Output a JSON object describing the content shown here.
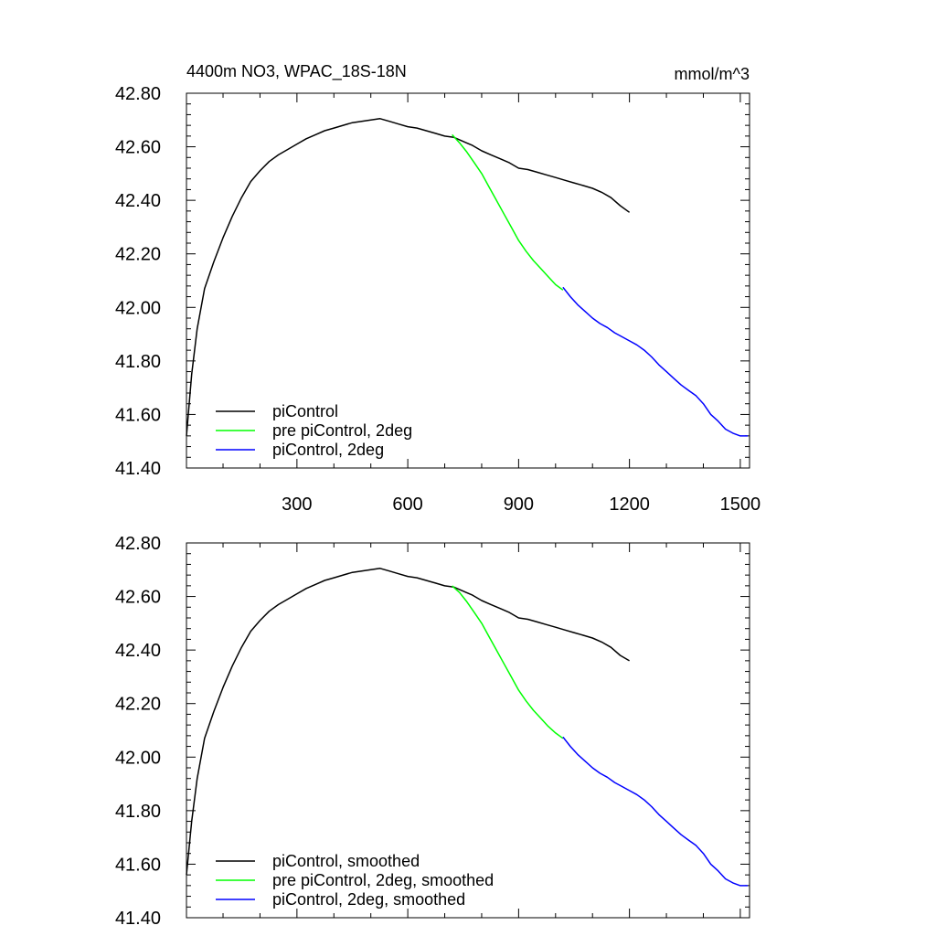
{
  "chart_data": [
    {
      "type": "line",
      "title": "4400m NO3, WPAC_18S-18N",
      "units": "mmol/m^3",
      "xlim": [
        1,
        1525
      ],
      "ylim": [
        41.4,
        42.8
      ],
      "x_ticks": [
        300,
        600,
        900,
        1200,
        1500
      ],
      "x_tick_labels": [
        "300",
        "600",
        "900",
        "1200",
        "1500"
      ],
      "y_ticks": [
        41.4,
        41.6,
        41.8,
        42.0,
        42.2,
        42.4,
        42.6,
        42.8
      ],
      "y_tick_labels": [
        "41.40",
        "41.60",
        "41.80",
        "42.00",
        "42.20",
        "42.40",
        "42.60",
        "42.80"
      ],
      "legend_position": "bottom-left",
      "grid": false,
      "series": [
        {
          "name": "piControl",
          "color": "#000000",
          "x": [
            1,
            15,
            30,
            50,
            75,
            100,
            125,
            150,
            175,
            200,
            225,
            250,
            275,
            300,
            325,
            350,
            375,
            400,
            425,
            450,
            475,
            500,
            525,
            550,
            575,
            600,
            625,
            650,
            675,
            700,
            725,
            750,
            775,
            800,
            825,
            850,
            875,
            900,
            925,
            950,
            975,
            1000,
            1025,
            1050,
            1075,
            1100,
            1125,
            1150,
            1175,
            1200
          ],
          "y": [
            41.52,
            41.75,
            41.92,
            42.07,
            42.17,
            42.26,
            42.34,
            42.41,
            42.47,
            42.51,
            42.545,
            42.57,
            42.59,
            42.61,
            42.63,
            42.645,
            42.66,
            42.67,
            42.68,
            42.69,
            42.695,
            42.7,
            42.705,
            42.695,
            42.685,
            42.675,
            42.67,
            42.66,
            42.65,
            42.64,
            42.635,
            42.62,
            42.605,
            42.585,
            42.57,
            42.555,
            42.54,
            42.52,
            42.515,
            42.505,
            42.495,
            42.485,
            42.475,
            42.465,
            42.455,
            42.445,
            42.43,
            42.41,
            42.38,
            42.355
          ]
        },
        {
          "name": "pre piControl, 2deg",
          "color": "#00ff00",
          "x": [
            720,
            740,
            760,
            780,
            800,
            820,
            840,
            860,
            880,
            900,
            920,
            940,
            960,
            980,
            1000,
            1020
          ],
          "y": [
            42.645,
            42.615,
            42.58,
            42.54,
            42.5,
            42.45,
            42.4,
            42.35,
            42.3,
            42.25,
            42.21,
            42.175,
            42.145,
            42.115,
            42.085,
            42.065
          ]
        },
        {
          "name": "piControl, 2deg",
          "color": "#0000ff",
          "x": [
            1020,
            1040,
            1060,
            1080,
            1100,
            1120,
            1140,
            1160,
            1180,
            1200,
            1220,
            1240,
            1260,
            1280,
            1300,
            1320,
            1340,
            1360,
            1380,
            1400,
            1420,
            1440,
            1460,
            1480,
            1500,
            1520
          ],
          "y": [
            42.075,
            42.04,
            42.01,
            41.985,
            41.96,
            41.94,
            41.925,
            41.905,
            41.89,
            41.875,
            41.86,
            41.84,
            41.815,
            41.785,
            41.76,
            41.735,
            41.71,
            41.69,
            41.67,
            41.64,
            41.6,
            41.575,
            41.545,
            41.53,
            41.52,
            41.52
          ]
        }
      ]
    },
    {
      "type": "line",
      "title": "",
      "units": "",
      "xlim": [
        1,
        1525
      ],
      "ylim": [
        41.4,
        42.8
      ],
      "x_ticks": [
        300,
        600,
        900,
        1200,
        1500
      ],
      "x_tick_labels": [],
      "y_ticks": [
        41.4,
        41.6,
        41.8,
        42.0,
        42.2,
        42.4,
        42.6,
        42.8
      ],
      "y_tick_labels": [
        "41.40",
        "41.60",
        "41.80",
        "42.00",
        "42.20",
        "42.40",
        "42.60",
        "42.80"
      ],
      "legend_position": "bottom-left",
      "grid": false,
      "series": [
        {
          "name": "piControl, smoothed",
          "color": "#000000",
          "x": [
            1,
            15,
            30,
            50,
            75,
            100,
            125,
            150,
            175,
            200,
            225,
            250,
            275,
            300,
            325,
            350,
            375,
            400,
            425,
            450,
            475,
            500,
            525,
            550,
            575,
            600,
            625,
            650,
            675,
            700,
            725,
            750,
            775,
            800,
            825,
            850,
            875,
            900,
            925,
            950,
            975,
            1000,
            1025,
            1050,
            1075,
            1100,
            1125,
            1150,
            1175,
            1200
          ],
          "y": [
            41.56,
            41.76,
            41.92,
            42.07,
            42.17,
            42.26,
            42.34,
            42.41,
            42.47,
            42.51,
            42.545,
            42.57,
            42.59,
            42.61,
            42.63,
            42.645,
            42.66,
            42.67,
            42.68,
            42.69,
            42.695,
            42.7,
            42.705,
            42.695,
            42.685,
            42.675,
            42.67,
            42.66,
            42.65,
            42.64,
            42.635,
            42.62,
            42.605,
            42.585,
            42.57,
            42.555,
            42.54,
            42.52,
            42.515,
            42.505,
            42.495,
            42.485,
            42.475,
            42.465,
            42.455,
            42.445,
            42.43,
            42.41,
            42.38,
            42.36
          ]
        },
        {
          "name": "pre piControl, 2deg, smoothed",
          "color": "#00ff00",
          "x": [
            720,
            740,
            760,
            780,
            800,
            820,
            840,
            860,
            880,
            900,
            920,
            940,
            960,
            980,
            1000,
            1020
          ],
          "y": [
            42.64,
            42.615,
            42.58,
            42.54,
            42.5,
            42.45,
            42.4,
            42.35,
            42.3,
            42.25,
            42.21,
            42.175,
            42.145,
            42.115,
            42.09,
            42.07
          ]
        },
        {
          "name": "piControl, 2deg, smoothed",
          "color": "#0000ff",
          "x": [
            1020,
            1040,
            1060,
            1080,
            1100,
            1120,
            1140,
            1160,
            1180,
            1200,
            1220,
            1240,
            1260,
            1280,
            1300,
            1320,
            1340,
            1360,
            1380,
            1400,
            1420,
            1440,
            1460,
            1480,
            1500,
            1520
          ],
          "y": [
            42.075,
            42.04,
            42.01,
            41.985,
            41.96,
            41.94,
            41.925,
            41.905,
            41.89,
            41.875,
            41.86,
            41.84,
            41.815,
            41.785,
            41.76,
            41.735,
            41.71,
            41.69,
            41.67,
            41.64,
            41.6,
            41.575,
            41.545,
            41.53,
            41.52,
            41.52
          ]
        }
      ]
    }
  ]
}
